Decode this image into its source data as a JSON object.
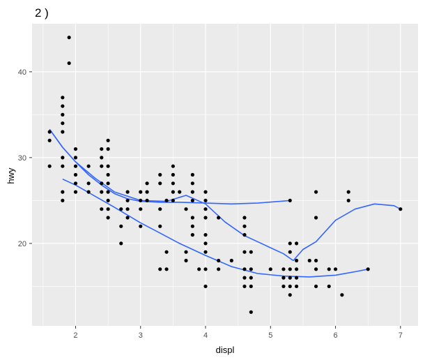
{
  "chart_data": {
    "type": "scatter",
    "title": "2 )",
    "xlabel": "displ",
    "ylabel": "hwy",
    "xlim": [
      1.6,
      7.0
    ],
    "ylim": [
      12,
      44
    ],
    "x_ticks": [
      "2",
      "3",
      "4",
      "5",
      "6",
      "7"
    ],
    "y_ticks": [
      "20",
      "30",
      "40"
    ],
    "grid": true,
    "background_color": "#ebebeb",
    "grid_color": "#ffffff",
    "point_color": "#000000",
    "line_color": "#3366ff",
    "points": [
      [
        1.6,
        33
      ],
      [
        1.6,
        32
      ],
      [
        1.6,
        29
      ],
      [
        1.8,
        37
      ],
      [
        1.8,
        36
      ],
      [
        1.8,
        35
      ],
      [
        1.8,
        34
      ],
      [
        1.8,
        33
      ],
      [
        1.8,
        30
      ],
      [
        1.8,
        29
      ],
      [
        1.8,
        26
      ],
      [
        1.8,
        25
      ],
      [
        1.9,
        44
      ],
      [
        1.9,
        41
      ],
      [
        2.0,
        31
      ],
      [
        2.0,
        30
      ],
      [
        2.0,
        29
      ],
      [
        2.0,
        28
      ],
      [
        2.0,
        27
      ],
      [
        2.0,
        26
      ],
      [
        2.2,
        29
      ],
      [
        2.2,
        27
      ],
      [
        2.2,
        26
      ],
      [
        2.4,
        31
      ],
      [
        2.4,
        30
      ],
      [
        2.4,
        29
      ],
      [
        2.4,
        27
      ],
      [
        2.4,
        26
      ],
      [
        2.4,
        24
      ],
      [
        2.5,
        32
      ],
      [
        2.5,
        31
      ],
      [
        2.5,
        29
      ],
      [
        2.5,
        28
      ],
      [
        2.5,
        27
      ],
      [
        2.5,
        26
      ],
      [
        2.5,
        25
      ],
      [
        2.5,
        24
      ],
      [
        2.5,
        23
      ],
      [
        2.7,
        24
      ],
      [
        2.7,
        22
      ],
      [
        2.7,
        20
      ],
      [
        2.8,
        26
      ],
      [
        2.8,
        25
      ],
      [
        2.8,
        24
      ],
      [
        2.8,
        23
      ],
      [
        3.0,
        26
      ],
      [
        3.0,
        25
      ],
      [
        3.0,
        24
      ],
      [
        3.0,
        22
      ],
      [
        3.1,
        27
      ],
      [
        3.1,
        26
      ],
      [
        3.1,
        25
      ],
      [
        3.3,
        28
      ],
      [
        3.3,
        27
      ],
      [
        3.3,
        24
      ],
      [
        3.3,
        22
      ],
      [
        3.3,
        17
      ],
      [
        3.4,
        25
      ],
      [
        3.4,
        19
      ],
      [
        3.4,
        17
      ],
      [
        3.5,
        29
      ],
      [
        3.5,
        28
      ],
      [
        3.5,
        27
      ],
      [
        3.5,
        26
      ],
      [
        3.5,
        25
      ],
      [
        3.6,
        26
      ],
      [
        3.7,
        24
      ],
      [
        3.7,
        19
      ],
      [
        3.7,
        18
      ],
      [
        3.8,
        28
      ],
      [
        3.8,
        27
      ],
      [
        3.8,
        26
      ],
      [
        3.8,
        25
      ],
      [
        3.8,
        23
      ],
      [
        3.8,
        22
      ],
      [
        3.8,
        21
      ],
      [
        3.9,
        17
      ],
      [
        4.0,
        26
      ],
      [
        4.0,
        25
      ],
      [
        4.0,
        24
      ],
      [
        4.0,
        23
      ],
      [
        4.0,
        21
      ],
      [
        4.0,
        20
      ],
      [
        4.0,
        19
      ],
      [
        4.0,
        17
      ],
      [
        4.0,
        15
      ],
      [
        4.2,
        23
      ],
      [
        4.2,
        18
      ],
      [
        4.2,
        17
      ],
      [
        4.4,
        18
      ],
      [
        4.6,
        23
      ],
      [
        4.6,
        22
      ],
      [
        4.6,
        21
      ],
      [
        4.6,
        19
      ],
      [
        4.6,
        17
      ],
      [
        4.6,
        16
      ],
      [
        4.6,
        15
      ],
      [
        4.7,
        19
      ],
      [
        4.7,
        17
      ],
      [
        4.7,
        16
      ],
      [
        4.7,
        15
      ],
      [
        4.7,
        12
      ],
      [
        5.0,
        17
      ],
      [
        5.2,
        17
      ],
      [
        5.2,
        16
      ],
      [
        5.2,
        15
      ],
      [
        5.3,
        25
      ],
      [
        5.3,
        20
      ],
      [
        5.3,
        19
      ],
      [
        5.3,
        17
      ],
      [
        5.3,
        16
      ],
      [
        5.3,
        15
      ],
      [
        5.3,
        14
      ],
      [
        5.4,
        20
      ],
      [
        5.4,
        18
      ],
      [
        5.4,
        17
      ],
      [
        5.4,
        16
      ],
      [
        5.4,
        15
      ],
      [
        5.6,
        18
      ],
      [
        5.7,
        26
      ],
      [
        5.7,
        23
      ],
      [
        5.7,
        18
      ],
      [
        5.7,
        17
      ],
      [
        5.7,
        15
      ],
      [
        5.9,
        17
      ],
      [
        5.9,
        15
      ],
      [
        6.0,
        17
      ],
      [
        6.1,
        14
      ],
      [
        6.2,
        26
      ],
      [
        6.2,
        25
      ],
      [
        6.5,
        17
      ],
      [
        7.0,
        24
      ]
    ],
    "series": [
      {
        "values": [
          [
            1.6,
            33.3
          ],
          [
            1.8,
            31.2
          ],
          [
            2.0,
            29.5
          ],
          [
            2.2,
            28.0
          ],
          [
            2.4,
            26.8
          ],
          [
            2.6,
            25.8
          ],
          [
            2.8,
            25.2
          ],
          [
            3.0,
            24.9
          ],
          [
            3.3,
            24.8
          ],
          [
            3.6,
            24.8
          ],
          [
            4.0,
            24.7
          ],
          [
            4.4,
            24.6
          ],
          [
            4.8,
            24.7
          ],
          [
            5.3,
            25.0
          ]
        ]
      },
      {
        "values": [
          [
            1.6,
            33.3
          ],
          [
            1.8,
            31.2
          ],
          [
            2.0,
            29.5
          ],
          [
            2.3,
            27.6
          ],
          [
            2.6,
            26.0
          ],
          [
            3.0,
            25.0
          ],
          [
            3.4,
            24.9
          ],
          [
            3.7,
            25.6
          ],
          [
            4.0,
            24.6
          ],
          [
            4.3,
            22.5
          ],
          [
            4.6,
            20.9
          ],
          [
            5.0,
            19.5
          ],
          [
            5.2,
            18.8
          ],
          [
            5.35,
            18.0
          ],
          [
            5.5,
            19.3
          ],
          [
            5.7,
            20.2
          ],
          [
            6.0,
            22.7
          ],
          [
            6.3,
            24.0
          ],
          [
            6.6,
            24.6
          ],
          [
            6.9,
            24.4
          ],
          [
            7.0,
            24.0
          ]
        ]
      },
      {
        "values": [
          [
            1.8,
            27.5
          ],
          [
            2.0,
            26.8
          ],
          [
            2.3,
            25.5
          ],
          [
            2.6,
            24.2
          ],
          [
            3.0,
            22.4
          ],
          [
            3.3,
            21.2
          ],
          [
            3.6,
            20.0
          ],
          [
            4.0,
            18.6
          ],
          [
            4.4,
            17.3
          ],
          [
            4.8,
            16.5
          ],
          [
            5.2,
            16.2
          ],
          [
            5.6,
            16.1
          ],
          [
            6.0,
            16.3
          ],
          [
            6.3,
            16.7
          ],
          [
            6.5,
            17.0
          ]
        ]
      }
    ]
  }
}
